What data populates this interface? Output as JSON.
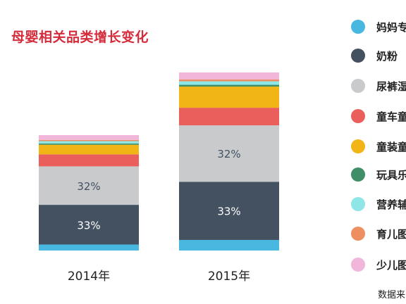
{
  "chart_data": {
    "type": "bar",
    "stacked": true,
    "normalized": true,
    "title": "母婴相关品类增长变化",
    "categories": [
      "2014年",
      "2015年"
    ],
    "series": [
      {
        "name": "妈妈专",
        "color": "#48b8e0",
        "values": [
          5,
          6
        ]
      },
      {
        "name": "奶粉",
        "color": "#435160",
        "values": [
          33,
          33
        ]
      },
      {
        "name": "尿裤湿",
        "color": "#c9cacc",
        "values": [
          32,
          32
        ]
      },
      {
        "name": "童车童",
        "color": "#ea5f5c",
        "values": [
          10,
          10
        ]
      },
      {
        "name": "童装童",
        "color": "#f2b516",
        "values": [
          8,
          12
        ]
      },
      {
        "name": "玩具乐",
        "color": "#3f8e68",
        "values": [
          1,
          1
        ]
      },
      {
        "name": "营养辅",
        "color": "#8ee6e6",
        "values": [
          2,
          2
        ]
      },
      {
        "name": "育儿图",
        "color": "#ed8f60",
        "values": [
          1,
          1
        ]
      },
      {
        "name": "少儿图",
        "color": "#f1b6da",
        "values": [
          4,
          4
        ]
      }
    ],
    "data_labels": [
      {
        "series": "奶粉",
        "category": "2014年",
        "text": "33%"
      },
      {
        "series": "尿裤湿",
        "category": "2014年",
        "text": "32%"
      },
      {
        "series": "奶粉",
        "category": "2015年",
        "text": "33%"
      },
      {
        "series": "尿裤湿",
        "category": "2015年",
        "text": "32%"
      }
    ],
    "source_text": "数据来"
  }
}
